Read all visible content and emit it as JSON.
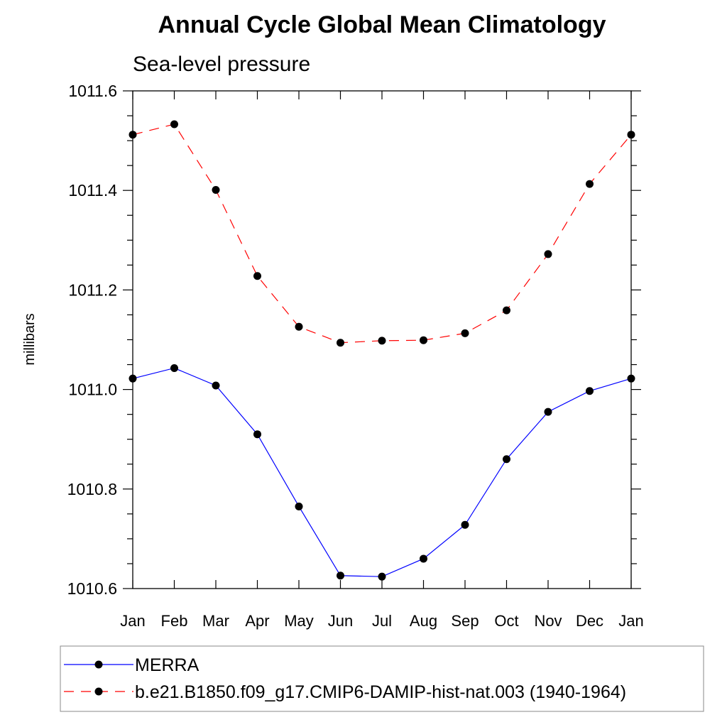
{
  "chart_data": {
    "type": "line",
    "title": "Annual Cycle Global Mean Climatology",
    "subtitle": "Sea-level pressure",
    "xlabel": "",
    "ylabel": "millibars",
    "categories": [
      "Jan",
      "Feb",
      "Mar",
      "Apr",
      "May",
      "Jun",
      "Jul",
      "Aug",
      "Sep",
      "Oct",
      "Nov",
      "Dec",
      "Jan"
    ],
    "ylim": [
      1010.6,
      1011.6
    ],
    "yticks": [
      "1010.6",
      "1010.8",
      "1011.0",
      "1011.2",
      "1011.4",
      "1011.6"
    ],
    "yticks_values": [
      1010.6,
      1010.8,
      1011.0,
      1011.2,
      1011.4,
      1011.6
    ],
    "grid": false,
    "legend_position": "bottom",
    "series": [
      {
        "name": "MERRA",
        "color": "#0000ff",
        "dash": "solid",
        "marker": "circle",
        "values": [
          1011.022,
          1011.043,
          1011.008,
          1010.91,
          1010.765,
          1010.626,
          1010.624,
          1010.66,
          1010.728,
          1010.86,
          1010.955,
          1010.997,
          1011.022
        ]
      },
      {
        "name": "b.e21.B1850.f09_g17.CMIP6-DAMIP-hist-nat.003 (1940-1964)",
        "color": "#ff0000",
        "dash": "dashed",
        "marker": "circle",
        "values": [
          1011.512,
          1011.533,
          1011.401,
          1011.228,
          1011.126,
          1011.094,
          1011.098,
          1011.099,
          1011.113,
          1011.159,
          1011.272,
          1011.413,
          1011.512
        ]
      }
    ]
  }
}
